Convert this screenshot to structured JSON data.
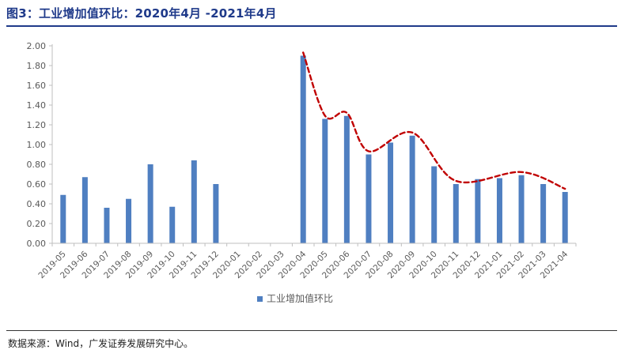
{
  "header": {
    "title": "图3：工业增加值环比：2020年4月 -2021年4月"
  },
  "footer": {
    "source": "数据来源：Wind，广发证券发展研究中心。"
  },
  "colors": {
    "title": "#1f3a8a",
    "bar": "#4f7fc1",
    "trend": "#c00000",
    "axis": "#bfbfbf",
    "text": "#595959"
  },
  "chart_data": {
    "type": "bar",
    "title": "",
    "xlabel": "",
    "ylabel": "",
    "ylim": [
      0,
      2.0
    ],
    "yticks": [
      "0.00",
      "0.20",
      "0.40",
      "0.60",
      "0.80",
      "1.00",
      "1.20",
      "1.40",
      "1.60",
      "1.80",
      "2.00"
    ],
    "grid": false,
    "legend_position": "bottom-center",
    "categories": [
      "2019-05",
      "2019-06",
      "2019-07",
      "2019-08",
      "2019-09",
      "2019-10",
      "2019-11",
      "2019-12",
      "2020-01",
      "2020-02",
      "2020-03",
      "2020-04",
      "2020-05",
      "2020-06",
      "2020-07",
      "2020-08",
      "2020-09",
      "2020-10",
      "2020-11",
      "2020-12",
      "2021-01",
      "2021-02",
      "2021-03",
      "2021-04"
    ],
    "series": [
      {
        "name": "工业增加值环比",
        "values": [
          0.49,
          0.67,
          0.36,
          0.45,
          0.8,
          0.37,
          0.84,
          0.6,
          null,
          null,
          null,
          1.9,
          1.26,
          1.29,
          0.9,
          1.02,
          1.09,
          0.78,
          0.6,
          0.65,
          0.66,
          0.69,
          0.6,
          0.52
        ]
      }
    ],
    "annotations": [
      {
        "type": "dashed-trend-line",
        "from_category": "2020-04",
        "to_category": "2021-04"
      }
    ]
  }
}
